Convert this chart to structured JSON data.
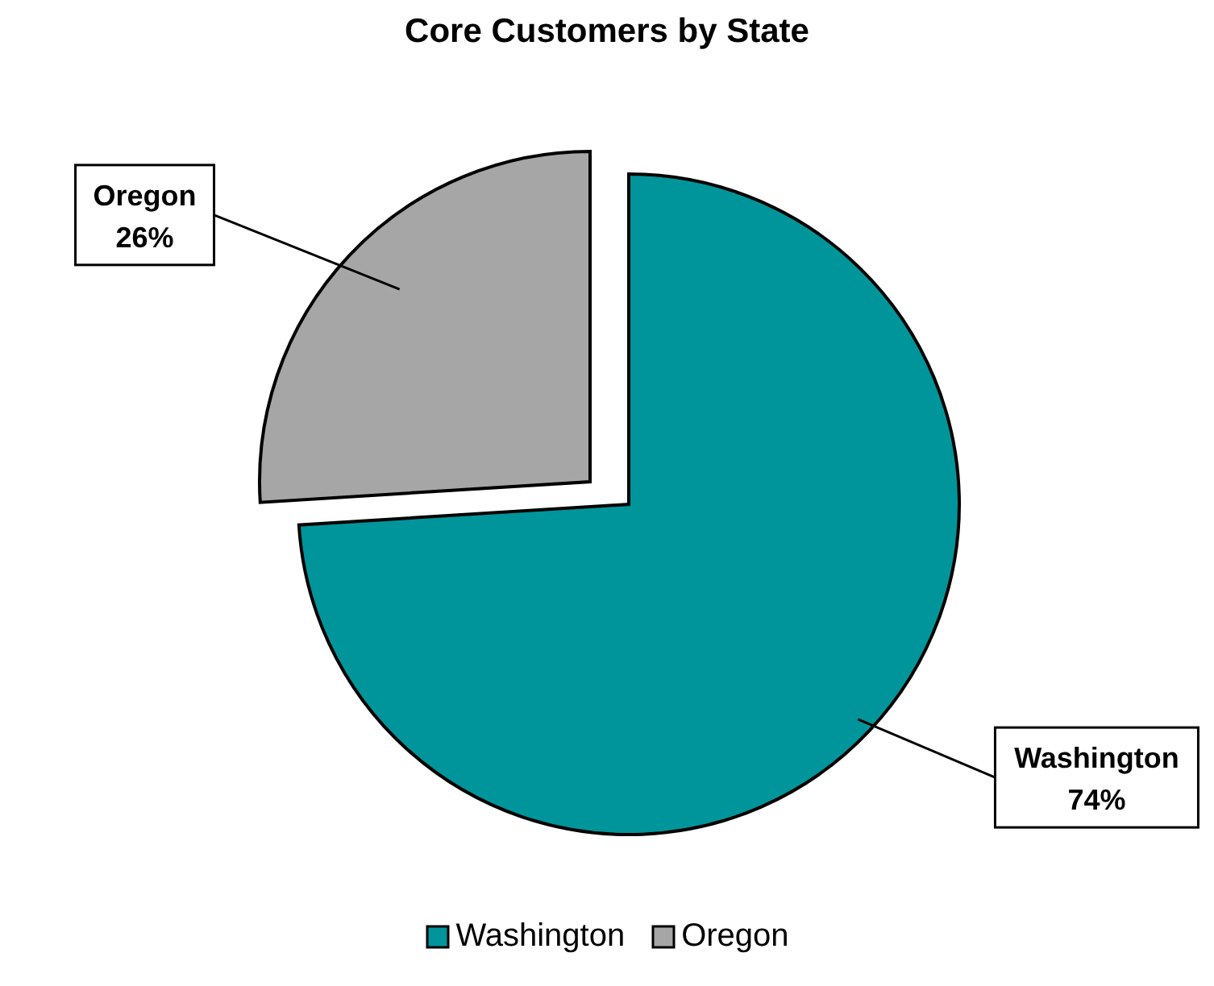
{
  "chart_data": {
    "type": "pie",
    "title": "Core Customers by State",
    "categories": [
      "Washington",
      "Oregon"
    ],
    "values": [
      74,
      26
    ],
    "colors": [
      "#00959a",
      "#a6a6a6"
    ],
    "value_labels": [
      "74%",
      "26%"
    ],
    "legend": "bottom"
  }
}
